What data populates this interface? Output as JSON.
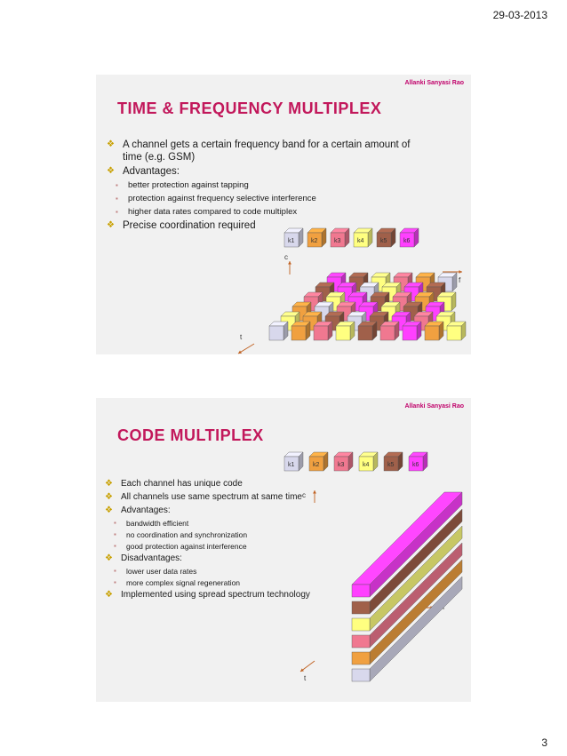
{
  "date": "29-03-2013",
  "page_number": "3",
  "slides": [
    {
      "author": "Allanki Sanyasi Rao",
      "title": "TIME & FREQUENCY MULTIPLEX",
      "bullets": [
        "A channel gets a certain frequency band for a certain amount of time (e.g. GSM)",
        "Advantages:",
        "better protection against tapping",
        "protection against frequency selective interference",
        "higher data rates compared to code multiplex",
        "Precise coordination required"
      ],
      "diagram": {
        "channels": [
          "k1",
          "k2",
          "k3",
          "k4",
          "k5",
          "k6"
        ],
        "axis_c": "c",
        "axis_f": "f",
        "axis_t": "t"
      }
    },
    {
      "author": "Allanki Sanyasi Rao",
      "title": "CODE MULTIPLEX",
      "bullets": [
        "Each channel has unique code",
        "All channels use same spectrum at same time",
        "Advantages:",
        "bandwidth efficient",
        "no coordination and synchronization",
        "good protection against interference",
        "Disadvantages:",
        "lower user data rates",
        "more complex signal regeneration",
        "Implemented using spread spectrum technology"
      ],
      "diagram": {
        "channels": [
          "k1",
          "k2",
          "k3",
          "k4",
          "k5",
          "k6"
        ],
        "axis_c": "c",
        "axis_f": "f",
        "axis_t": "t"
      }
    }
  ],
  "colors": {
    "k1": "#d8d8ec",
    "k2": "#f0a040",
    "k3": "#f07890",
    "k4": "#ffff80",
    "k5": "#a0604a",
    "k6": "#ff40ff",
    "title": "#c2185b",
    "author": "#c0006a"
  }
}
